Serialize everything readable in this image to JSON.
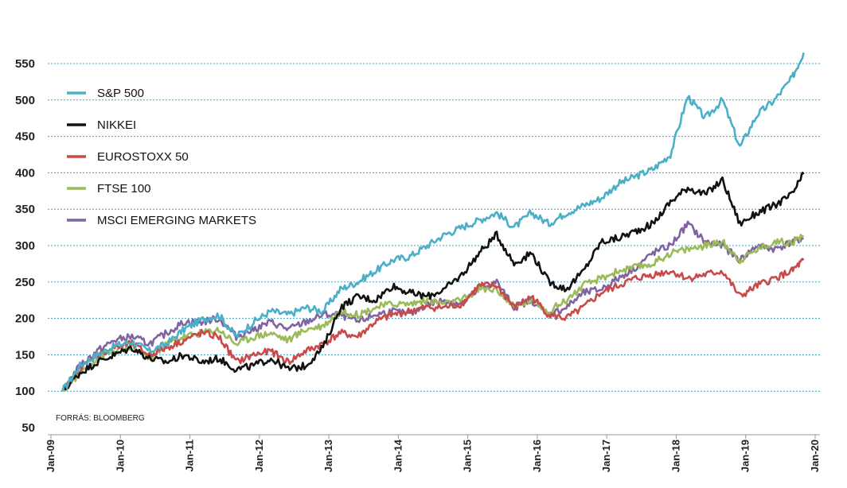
{
  "chart_data": {
    "type": "line",
    "source": "FORRÁS: BLOOMBERG",
    "ylim": [
      50,
      570
    ],
    "yticks": [
      50,
      100,
      150,
      200,
      250,
      300,
      350,
      400,
      450,
      500,
      550
    ],
    "ytick_labels": [
      "50",
      "100",
      "150",
      "200",
      "250",
      "300",
      "350",
      "400",
      "450",
      "500",
      "550"
    ],
    "xlim": [
      2009.0,
      2020.0
    ],
    "xtick_labels": [
      "Jan-09",
      "Jan-10",
      "Jan-11",
      "Jan-12",
      "Jan-13",
      "Jan-14",
      "Jan-15",
      "Jan-16",
      "Jan-17",
      "Jan-18",
      "Jan-19",
      "Jan-20"
    ],
    "grid": "horizontal dotted",
    "legend_position": "top-left",
    "x": [
      "2009-03",
      "2009-06",
      "2009-09",
      "2009-12",
      "2010-03",
      "2010-06",
      "2010-09",
      "2010-12",
      "2011-03",
      "2011-06",
      "2011-09",
      "2011-12",
      "2012-03",
      "2012-06",
      "2012-09",
      "2012-12",
      "2013-03",
      "2013-06",
      "2013-09",
      "2013-12",
      "2014-03",
      "2014-06",
      "2014-09",
      "2014-12",
      "2015-03",
      "2015-06",
      "2015-09",
      "2015-12",
      "2016-03",
      "2016-06",
      "2016-09",
      "2016-12",
      "2017-03",
      "2017-06",
      "2017-09",
      "2017-12",
      "2018-03",
      "2018-06",
      "2018-09",
      "2018-12",
      "2019-03",
      "2019-06",
      "2019-09",
      "2019-11"
    ],
    "series": [
      {
        "name": "S&P 500",
        "color": "#4bafc8",
        "values": [
          100,
          135,
          150,
          162,
          168,
          155,
          165,
          185,
          198,
          205,
          175,
          195,
          210,
          205,
          215,
          210,
          240,
          250,
          265,
          280,
          285,
          300,
          315,
          325,
          335,
          345,
          325,
          345,
          330,
          345,
          355,
          365,
          385,
          395,
          405,
          425,
          505,
          475,
          500,
          435,
          480,
          500,
          530,
          565
        ]
      },
      {
        "name": "NIKKEI",
        "color": "#111111",
        "values": [
          100,
          125,
          140,
          150,
          160,
          145,
          140,
          150,
          140,
          145,
          130,
          135,
          145,
          130,
          135,
          160,
          215,
          230,
          225,
          245,
          235,
          230,
          240,
          260,
          290,
          315,
          275,
          290,
          250,
          240,
          265,
          305,
          310,
          320,
          330,
          360,
          380,
          370,
          390,
          330,
          345,
          355,
          370,
          398
        ]
      },
      {
        "name": "EUROSTOXX 50",
        "color": "#c94a4a",
        "values": [
          100,
          130,
          150,
          160,
          165,
          150,
          160,
          170,
          180,
          175,
          140,
          150,
          155,
          140,
          155,
          165,
          180,
          175,
          195,
          205,
          210,
          215,
          215,
          220,
          245,
          245,
          215,
          230,
          205,
          200,
          215,
          235,
          245,
          255,
          260,
          265,
          255,
          260,
          265,
          230,
          245,
          255,
          265,
          280
        ]
      },
      {
        "name": "FTSE 100",
        "color": "#9bbb59",
        "values": [
          100,
          125,
          145,
          155,
          160,
          145,
          165,
          175,
          180,
          185,
          165,
          175,
          180,
          170,
          185,
          190,
          210,
          205,
          215,
          220,
          220,
          225,
          220,
          225,
          240,
          240,
          215,
          225,
          210,
          225,
          245,
          255,
          265,
          270,
          275,
          290,
          295,
          300,
          305,
          280,
          295,
          305,
          305,
          312
        ]
      },
      {
        "name": "MSCI EMERGING MARKETS",
        "color": "#8064a2",
        "values": [
          100,
          135,
          155,
          170,
          175,
          165,
          180,
          195,
          195,
          200,
          175,
          185,
          195,
          185,
          195,
          205,
          205,
          195,
          205,
          210,
          205,
          220,
          225,
          220,
          240,
          250,
          215,
          225,
          205,
          215,
          235,
          240,
          255,
          270,
          290,
          300,
          330,
          305,
          300,
          280,
          300,
          295,
          305,
          310
        ]
      }
    ]
  }
}
